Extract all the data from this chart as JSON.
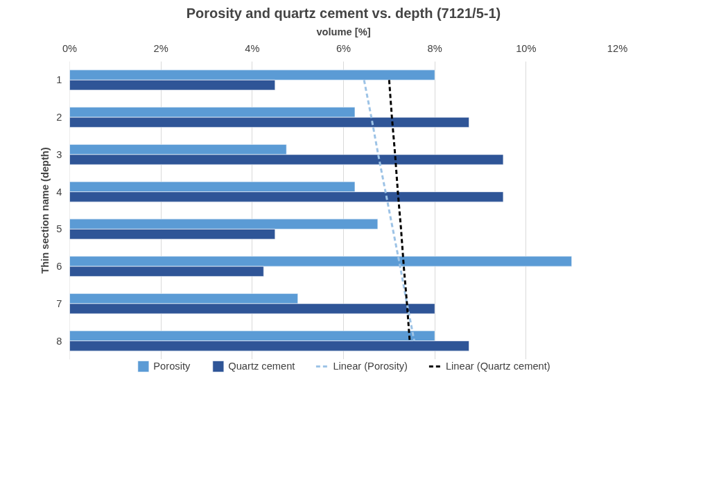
{
  "chart_data": {
    "type": "bar",
    "orientation": "horizontal",
    "title": "Porosity and quartz cement vs. depth (7121/5-1)",
    "xlabel": "volume [%]",
    "ylabel": "Thin section name (depth)",
    "categories": [
      "1",
      "2",
      "3",
      "4",
      "5",
      "6",
      "7",
      "8"
    ],
    "series": [
      {
        "name": "Porosity",
        "color": "#5b9bd5",
        "values": [
          8,
          6.25,
          4.75,
          6.25,
          6.75,
          11,
          5,
          8
        ]
      },
      {
        "name": "Quartz cement",
        "color": "#2f5597",
        "values": [
          4.5,
          8.75,
          9.5,
          9.5,
          4.5,
          4.25,
          8,
          8.75
        ]
      },
      {
        "name": "Linear (Porosity)",
        "type": "line",
        "line_style": "dashed",
        "color": "#9dc3e6",
        "values": [
          6.45,
          6.61,
          6.76,
          6.92,
          7.08,
          7.24,
          7.39,
          7.55
        ]
      },
      {
        "name": "Linear (Quartz cement)",
        "type": "line",
        "line_style": "dashed",
        "color": "#000000",
        "values": [
          7.0,
          7.06,
          7.13,
          7.19,
          7.26,
          7.32,
          7.39,
          7.45
        ]
      }
    ],
    "xlim": [
      0,
      12
    ],
    "xticks": [
      {
        "value": 0,
        "label": "0%"
      },
      {
        "value": 2,
        "label": "2%"
      },
      {
        "value": 4,
        "label": "4%"
      },
      {
        "value": 6,
        "label": "6%"
      },
      {
        "value": 8,
        "label": "8%"
      },
      {
        "value": 10,
        "label": "10%"
      },
      {
        "value": 12,
        "label": "12%"
      }
    ],
    "grid": "x",
    "legend": "bottom"
  }
}
